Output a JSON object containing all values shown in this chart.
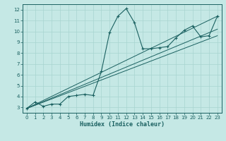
{
  "xlabel": "Humidex (Indice chaleur)",
  "background_color": "#c5e8e5",
  "grid_color": "#a8d4d0",
  "line_color": "#1a6060",
  "xlim": [
    -0.5,
    23.5
  ],
  "ylim": [
    2.5,
    12.5
  ],
  "xticks": [
    0,
    1,
    2,
    3,
    4,
    5,
    6,
    7,
    8,
    9,
    10,
    11,
    12,
    13,
    14,
    15,
    16,
    17,
    18,
    19,
    20,
    21,
    22,
    23
  ],
  "yticks": [
    3,
    4,
    5,
    6,
    7,
    8,
    9,
    10,
    11,
    12
  ],
  "series": [
    [
      0,
      2.9
    ],
    [
      1,
      3.5
    ],
    [
      2,
      3.1
    ],
    [
      3,
      3.3
    ],
    [
      4,
      3.3
    ],
    [
      5,
      4.0
    ],
    [
      6,
      4.1
    ],
    [
      7,
      4.2
    ],
    [
      8,
      4.1
    ],
    [
      9,
      6.3
    ],
    [
      10,
      9.9
    ],
    [
      11,
      11.4
    ],
    [
      12,
      12.1
    ],
    [
      13,
      10.8
    ],
    [
      14,
      8.4
    ],
    [
      15,
      8.4
    ],
    [
      16,
      8.5
    ],
    [
      17,
      8.6
    ],
    [
      18,
      9.4
    ],
    [
      19,
      10.1
    ],
    [
      20,
      10.5
    ],
    [
      21,
      9.5
    ],
    [
      22,
      9.6
    ],
    [
      23,
      11.4
    ]
  ],
  "line2": [
    [
      0,
      2.9
    ],
    [
      23,
      11.4
    ]
  ],
  "line3": [
    [
      0,
      2.9
    ],
    [
      23,
      9.6
    ]
  ],
  "line4": [
    [
      0,
      2.9
    ],
    [
      23,
      10.2
    ]
  ]
}
